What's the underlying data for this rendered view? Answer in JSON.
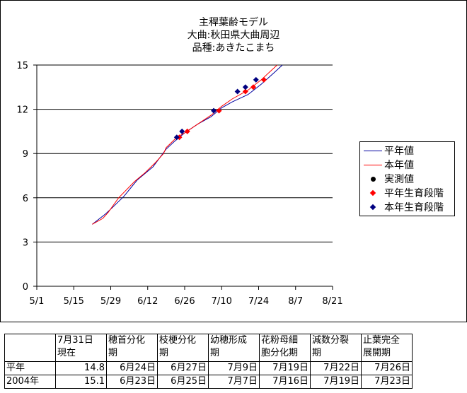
{
  "chart_data": {
    "type": "line",
    "title_lines": [
      "主稈葉齢モデル",
      "大曲:秋田県大曲周辺",
      "品種:あきたこまち"
    ],
    "x_ticks": [
      "5/1",
      "5/15",
      "5/29",
      "6/12",
      "6/26",
      "7/10",
      "7/24",
      "8/7",
      "8/21"
    ],
    "y_ticks": [
      "0",
      "3",
      "6",
      "9",
      "12",
      "15"
    ],
    "ylim": [
      0,
      15
    ],
    "xlim": [
      "5/1",
      "8/21"
    ],
    "grid": "horizontal",
    "legend_position": "right",
    "series": [
      {
        "name": "平年値",
        "kind": "line",
        "color": "#0000a0",
        "points": [
          [
            "5/22",
            4.2
          ],
          [
            "5/27",
            4.9
          ],
          [
            "5/30",
            5.4
          ],
          [
            "6/3",
            6.1
          ],
          [
            "6/8",
            7.2
          ],
          [
            "6/14",
            8.1
          ],
          [
            "6/19",
            9.3
          ],
          [
            "6/22",
            9.8
          ],
          [
            "6/26",
            10.4
          ],
          [
            "7/1",
            11.0
          ],
          [
            "7/6",
            11.5
          ],
          [
            "7/10",
            12.1
          ],
          [
            "7/14",
            12.5
          ],
          [
            "7/20",
            13.0
          ],
          [
            "7/25",
            13.7
          ],
          [
            "7/30",
            14.5
          ],
          [
            "8/2",
            15.0
          ]
        ]
      },
      {
        "name": "本年値",
        "kind": "line",
        "color": "#ff0000",
        "points": [
          [
            "5/22",
            4.2
          ],
          [
            "5/26",
            4.6
          ],
          [
            "5/28",
            5.0
          ],
          [
            "6/1",
            6.0
          ],
          [
            "6/7",
            7.1
          ],
          [
            "6/11",
            7.7
          ],
          [
            "6/15",
            8.4
          ],
          [
            "6/18",
            9.0
          ],
          [
            "6/19",
            9.4
          ],
          [
            "6/23",
            10.1
          ],
          [
            "6/26",
            10.4
          ],
          [
            "7/1",
            11.0
          ],
          [
            "7/6",
            11.6
          ],
          [
            "7/10",
            12.2
          ],
          [
            "7/14",
            12.7
          ],
          [
            "7/20",
            13.3
          ],
          [
            "7/25",
            14.0
          ],
          [
            "7/31",
            15.0
          ]
        ]
      },
      {
        "name": "実測値",
        "kind": "marker-circle",
        "color": "#000000",
        "points": []
      },
      {
        "name": "平年生育段階",
        "kind": "marker-diamond",
        "color": "#ff0000",
        "points": [
          [
            "6/24",
            10.1
          ],
          [
            "6/27",
            10.5
          ],
          [
            "7/9",
            11.9
          ],
          [
            "7/19",
            13.2
          ],
          [
            "7/22",
            13.5
          ],
          [
            "7/26",
            14.0
          ]
        ]
      },
      {
        "name": "本年生育段階",
        "kind": "marker-diamond",
        "color": "#000080",
        "points": [
          [
            "6/23",
            10.1
          ],
          [
            "6/25",
            10.5
          ],
          [
            "7/7",
            11.9
          ],
          [
            "7/16",
            13.2
          ],
          [
            "7/19",
            13.5
          ],
          [
            "7/23",
            14.0
          ]
        ]
      }
    ]
  },
  "table": {
    "headers": [
      [
        "",
        ""
      ],
      [
        "7月31日",
        "現在"
      ],
      [
        "穂首分化",
        "期"
      ],
      [
        "枝梗分化",
        "期"
      ],
      [
        "幼穂形成",
        "期"
      ],
      [
        "花粉母細",
        "胞分化期"
      ],
      [
        "減数分裂",
        "期"
      ],
      [
        "止葉完全",
        "展開期"
      ]
    ],
    "rows": [
      [
        "平年",
        "14.8",
        "6月24日",
        "6月27日",
        "7月9日",
        "7月19日",
        "7月22日",
        "7月26日"
      ],
      [
        "2004年",
        "15.1",
        "6月23日",
        "6月25日",
        "7月7日",
        "7月16日",
        "7月19日",
        "7月23日"
      ]
    ]
  }
}
